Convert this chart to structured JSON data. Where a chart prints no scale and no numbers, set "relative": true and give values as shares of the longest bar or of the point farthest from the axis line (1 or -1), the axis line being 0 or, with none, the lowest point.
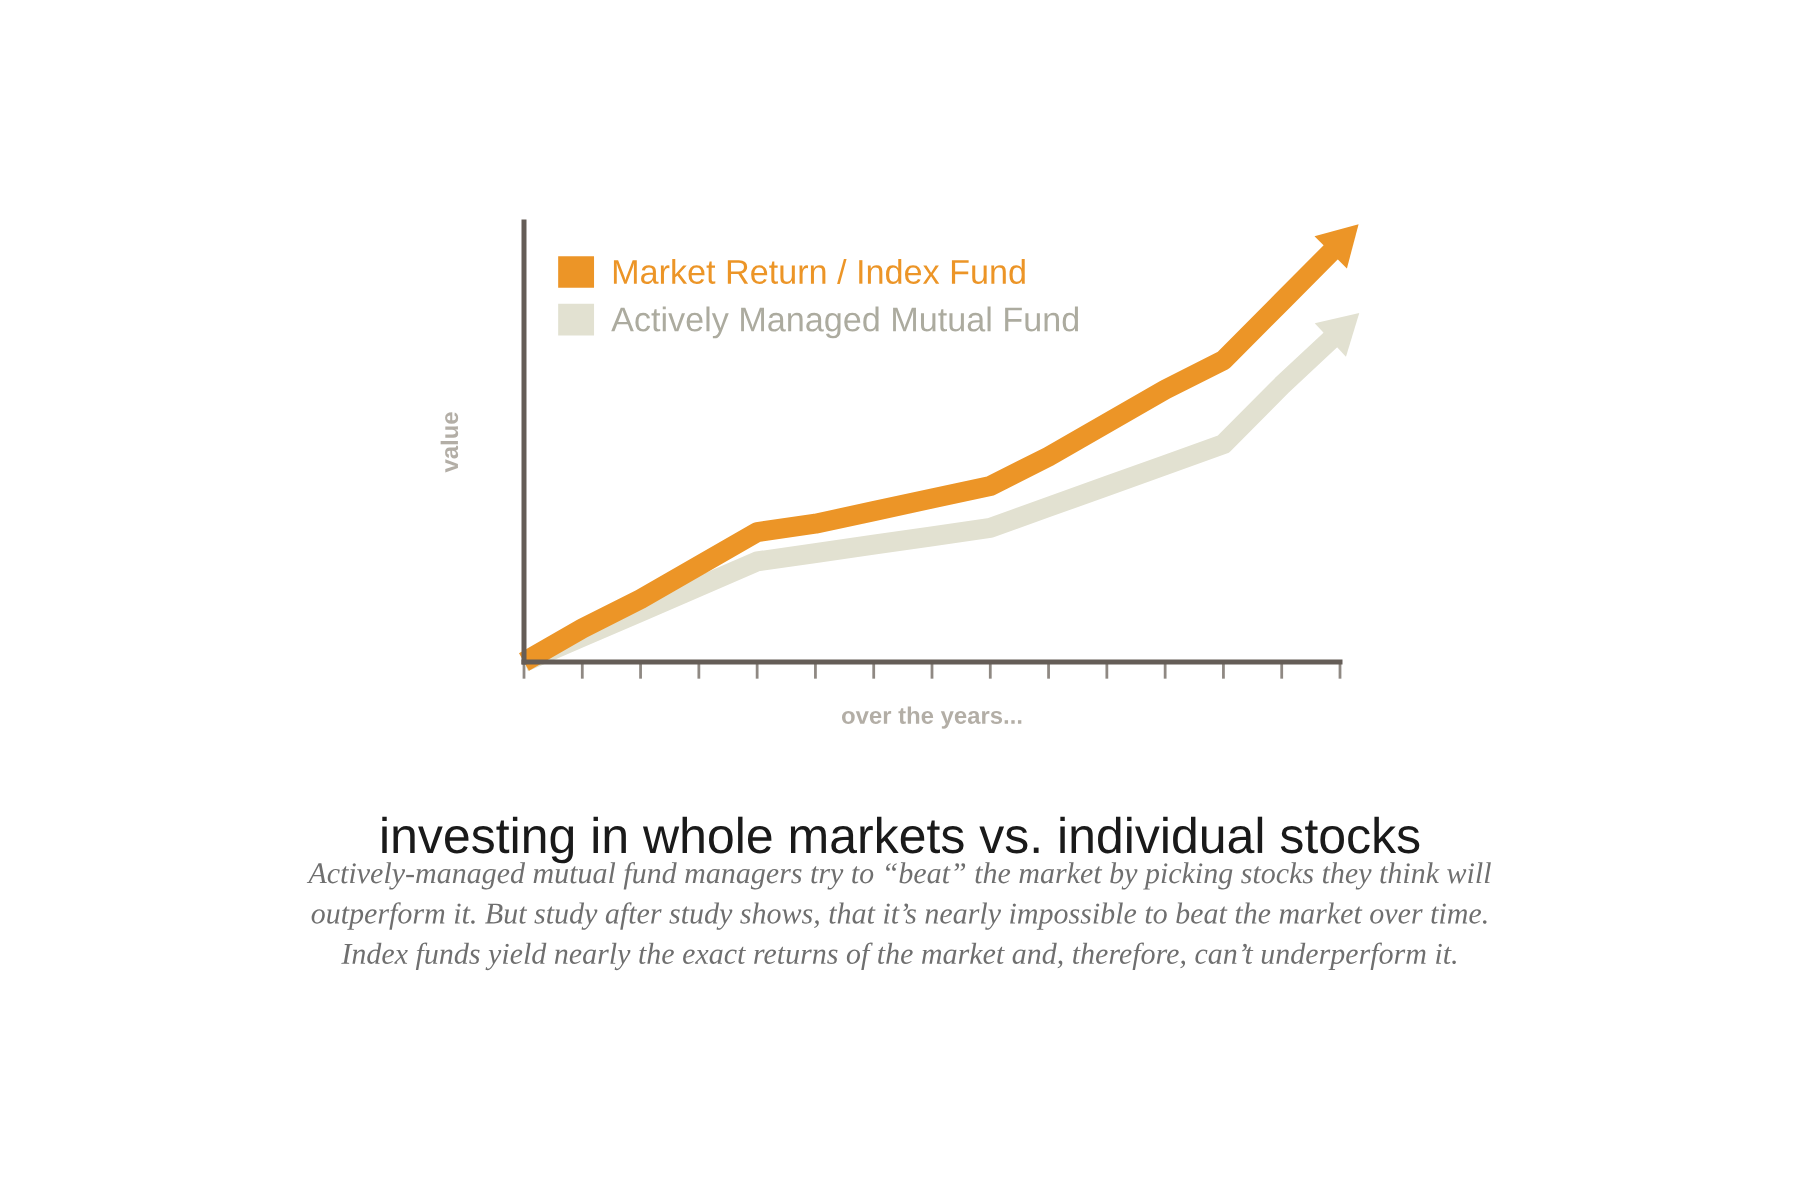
{
  "chart_data": {
    "type": "line",
    "title": "investing in whole markets vs. individual stocks",
    "xlabel": "over the years...",
    "ylabel": "value",
    "annotations": [
      "Actively-managed mutual fund managers try to “beat” the market by picking stocks they think will\noutperform it. But study after study shows, that it’s nearly impossible to beat the market over time.\nIndex funds yield nearly the exact returns of the market and, therefore, can’t underperform it."
    ],
    "relative": true,
    "categories": [
      null,
      null,
      null,
      null,
      null,
      null,
      null,
      null,
      null,
      null,
      null,
      null,
      null,
      null,
      null
    ],
    "series": [
      {
        "name": "Market Return / Index Fund",
        "color": "#ec9527",
        "values": [
          0,
          0.08,
          0.15,
          0.23,
          0.31,
          0.33,
          0.36,
          0.39,
          0.42,
          0.49,
          0.57,
          0.65,
          0.72,
          0.86,
          1
        ]
      },
      {
        "name": "Actively Managed Mutual Fund",
        "color": "#e2e1d1",
        "values": [
          0,
          0.06,
          0.12,
          0.18,
          0.24,
          0.26,
          0.28,
          0.3,
          0.32,
          0.37,
          0.42,
          0.47,
          0.52,
          0.66,
          0.79
        ]
      }
    ],
    "legend": "top left",
    "grid": false
  }
}
